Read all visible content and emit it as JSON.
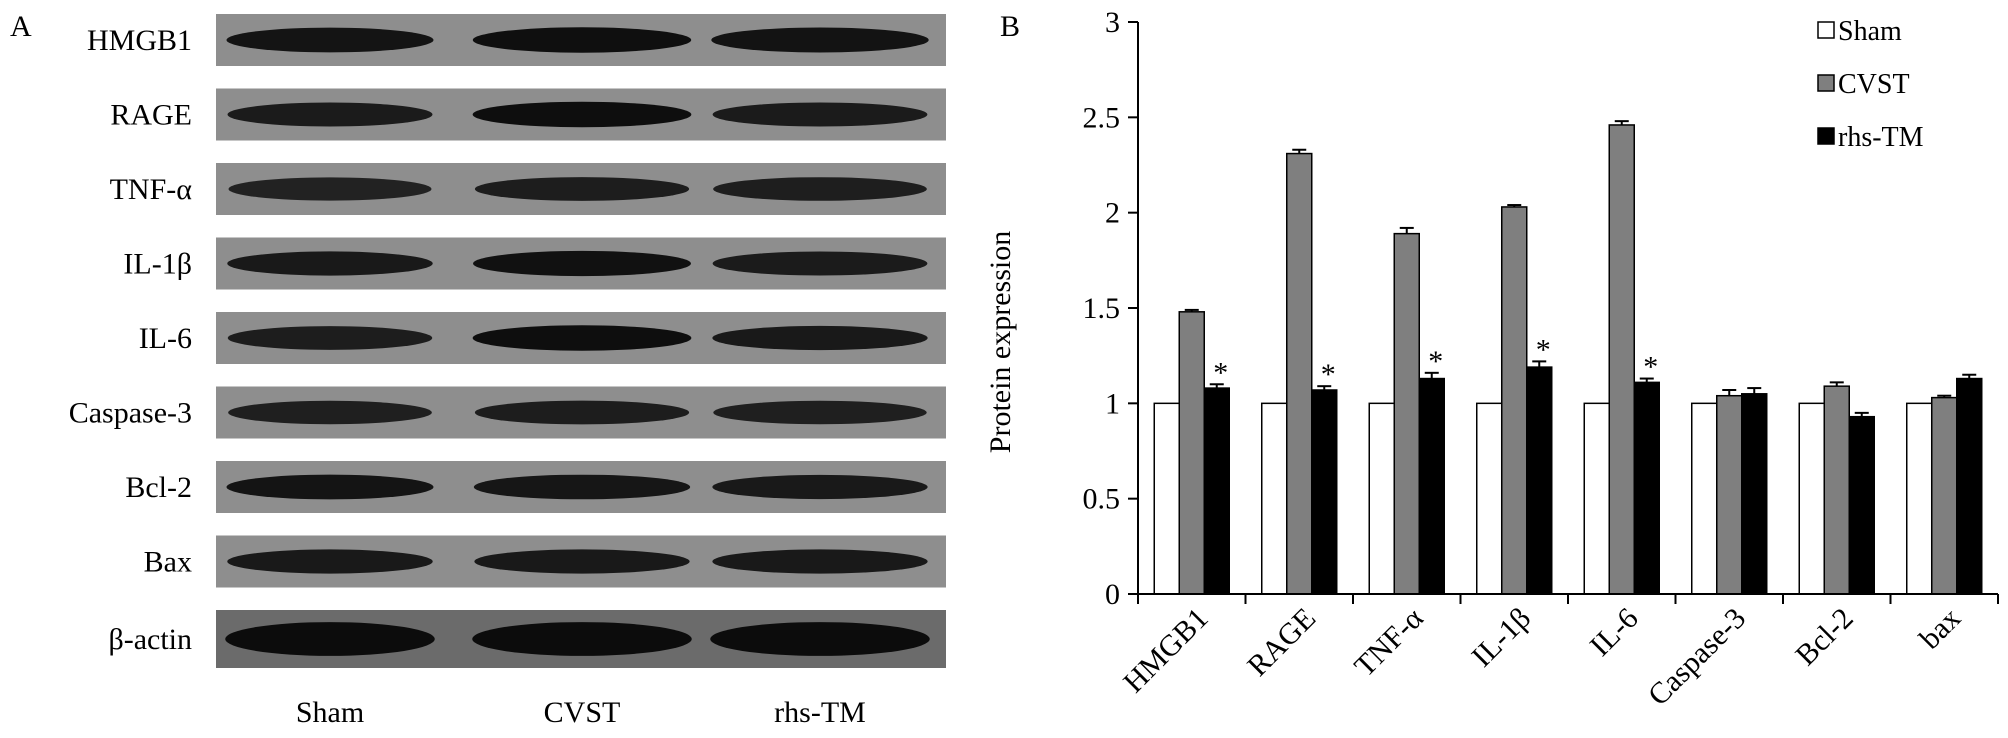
{
  "panel_a": {
    "label": "A",
    "rows": [
      "HMGB1",
      "RAGE",
      "TNF-α",
      "IL-1β",
      "IL-6",
      "Caspase-3",
      "Bcl-2",
      "Bax",
      "β-actin"
    ],
    "lanes": [
      "Sham",
      "CVST",
      "rhs-TM"
    ],
    "band_intensity": [
      [
        0.88,
        0.94,
        0.9
      ],
      [
        0.8,
        0.95,
        0.8
      ],
      [
        0.72,
        0.78,
        0.76
      ],
      [
        0.82,
        0.92,
        0.8
      ],
      [
        0.78,
        0.95,
        0.82
      ],
      [
        0.75,
        0.78,
        0.75
      ],
      [
        0.88,
        0.86,
        0.82
      ],
      [
        0.82,
        0.82,
        0.82
      ],
      [
        0.98,
        0.98,
        0.98
      ]
    ]
  },
  "panel_b": {
    "label": "B"
  },
  "chart_data": {
    "type": "bar",
    "categories": [
      "HMGB1",
      "RAGE",
      "TNF-α",
      "IL-1β",
      "IL-6",
      "Caspase-3",
      "Bcl-2",
      "bax"
    ],
    "series": [
      {
        "name": "Sham",
        "color": "#ffffff",
        "values": [
          1,
          1,
          1,
          1,
          1,
          1,
          1,
          1
        ],
        "errors": [
          0,
          0,
          0,
          0,
          0,
          0,
          0,
          0
        ]
      },
      {
        "name": "CVST",
        "color": "#7f7f7f",
        "values": [
          1.48,
          2.31,
          1.89,
          2.03,
          2.46,
          1.04,
          1.09,
          1.03
        ],
        "errors": [
          0.01,
          0.02,
          0.03,
          0.01,
          0.02,
          0.03,
          0.02,
          0.01
        ]
      },
      {
        "name": "rhs-TM",
        "color": "#000000",
        "values": [
          1.08,
          1.07,
          1.13,
          1.19,
          1.11,
          1.05,
          0.93,
          1.13
        ],
        "errors": [
          0.02,
          0.02,
          0.03,
          0.03,
          0.02,
          0.03,
          0.02,
          0.02
        ]
      }
    ],
    "significance": [
      {
        "category": "HMGB1",
        "series": "rhs-TM",
        "mark": "*"
      },
      {
        "category": "RAGE",
        "series": "rhs-TM",
        "mark": "*"
      },
      {
        "category": "TNF-α",
        "series": "rhs-TM",
        "mark": "*"
      },
      {
        "category": "IL-1β",
        "series": "rhs-TM",
        "mark": "*"
      },
      {
        "category": "IL-6",
        "series": "rhs-TM",
        "mark": "*"
      }
    ],
    "ylabel": "Protein expression",
    "xlabel": "",
    "ylim": [
      0,
      3
    ],
    "yticks": [
      0,
      0.5,
      1,
      1.5,
      2,
      2.5,
      3
    ],
    "ytick_labels": [
      "0",
      "0.5",
      "1",
      "1.5",
      "2",
      "2.5",
      "3"
    ],
    "legend_position": "top-right",
    "grid": false
  }
}
